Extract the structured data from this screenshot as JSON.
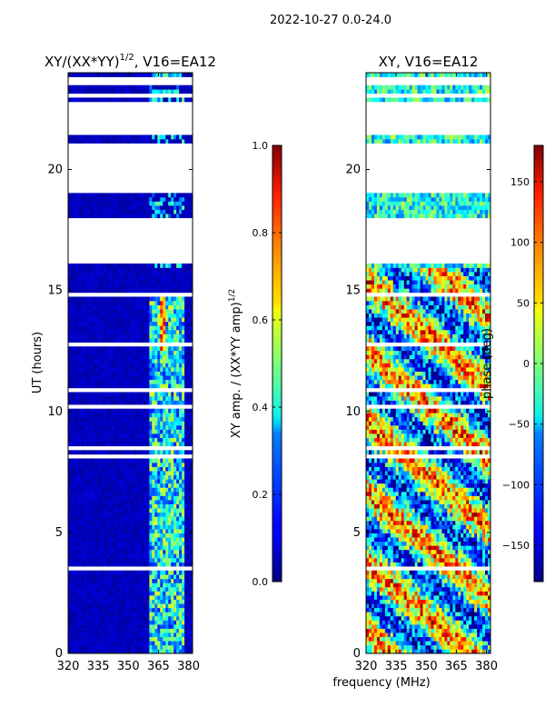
{
  "figure": {
    "suptitle": "2022-10-27 0.0-24.0",
    "xlabel": "frequency (MHz)"
  },
  "chart_data": [
    {
      "type": "heatmap",
      "title": "XY/(XX*YY)",
      "title_exponent": "1/2",
      "title_suffix": ", V16=EA12",
      "xlabel": "frequency (MHz)",
      "ylabel": "UT (hours)",
      "xlim": [
        320,
        382
      ],
      "ylim": [
        0,
        24
      ],
      "xticks": [
        320,
        335,
        350,
        365,
        380
      ],
      "yticks": [
        0,
        5,
        10,
        15,
        20
      ],
      "colorbar": {
        "label": "XY amp. / (XX*YY amp)",
        "label_exponent": "1/2",
        "range": [
          0.0,
          1.0
        ],
        "ticks": [
          "0.0",
          "0.2",
          "0.4",
          "0.6",
          "0.8",
          "1.0"
        ]
      }
    },
    {
      "type": "heatmap",
      "title": "XY, V16=EA12",
      "xlabel": "frequency (MHz)",
      "ylabel": "",
      "xlim": [
        320,
        382
      ],
      "ylim": [
        0,
        24
      ],
      "xticks": [
        320,
        335,
        350,
        365,
        380
      ],
      "yticks": [
        0,
        5,
        10,
        15,
        20
      ],
      "colorbar": {
        "label": "phase (deg)",
        "range": [
          -180,
          180
        ],
        "ticks": [
          "−150",
          "−100",
          "−50",
          "0",
          "50",
          "100",
          "150"
        ]
      }
    }
  ],
  "data_gaps_hours": [
    [
      16.1,
      18.0
    ],
    [
      19.0,
      21.0
    ],
    [
      21.45,
      21.9
    ],
    [
      22.2,
      22.85
    ],
    [
      23.55,
      23.75
    ]
  ]
}
